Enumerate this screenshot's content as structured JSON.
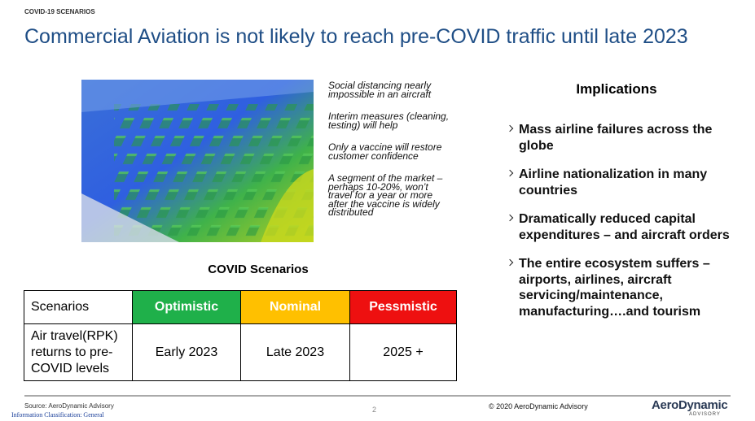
{
  "header": {
    "label": "COVID-19 SCENARIOS",
    "title": "Commercial Aviation is not likely to reach pre-COVID traffic until late 2023"
  },
  "notes": [
    "Social distancing nearly impossible in an aircraft",
    "Interim measures (cleaning, testing) will help",
    "Only a vaccine will restore customer confidence",
    "A segment of the market – perhaps 10-20%, won’t travel for a year or more after the vaccine is widely distributed"
  ],
  "implications": {
    "title": "Implications",
    "items": [
      "Mass airline failures across the globe",
      "Airline nationalization in many countries",
      "Dramatically reduced capital expenditures – and aircraft orders",
      "The entire ecosystem suffers – airports, airlines, aircraft servicing/maintenance, manufacturing….and tourism"
    ]
  },
  "table": {
    "title": "COVID Scenarios",
    "header": [
      "Scenarios",
      "Optimistic",
      "Nominal",
      "Pessmistic"
    ],
    "rows": [
      [
        "Air travel(RPK) returns to pre-COVID levels",
        "Early 2023",
        "Late 2023",
        "2025 +"
      ]
    ]
  },
  "footer": {
    "source": "Source: AeroDynamic Advisory",
    "page": "2",
    "copyright": "© 2020 AeroDynamic Advisory",
    "logo": "AeroDynamic",
    "logo_sub": "ADVISORY",
    "classification": "Information Classification: General"
  }
}
